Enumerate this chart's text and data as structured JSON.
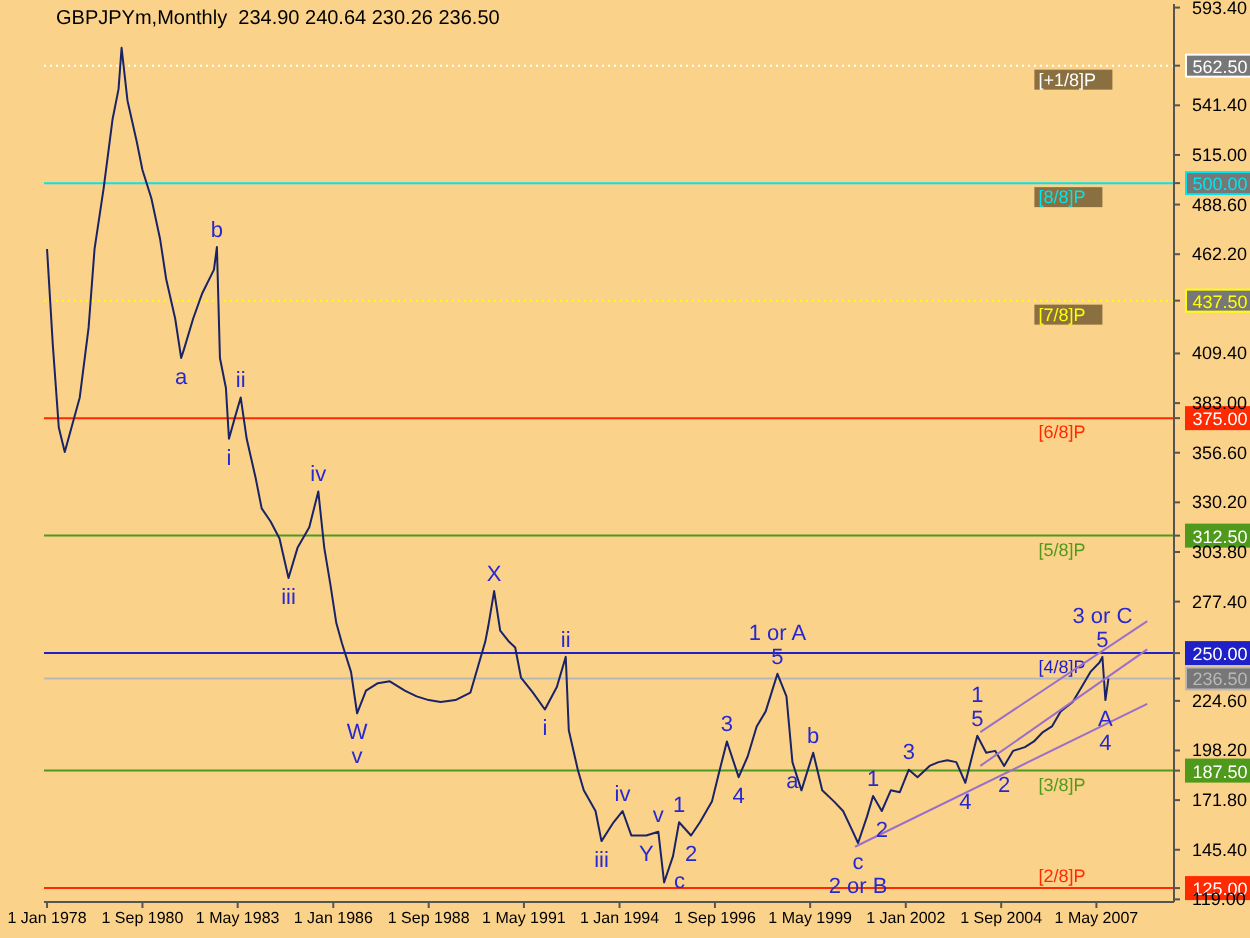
{
  "chart_data": {
    "type": "line",
    "title": "GBPJPYm,Monthly  234.90 240.64 230.26 236.50",
    "xlim": [
      "1977-12",
      "2009-07"
    ],
    "xticks": [
      {
        "value": "1978-01",
        "label": "1 Jan 1978"
      },
      {
        "value": "1980-09",
        "label": "1 Sep 1980"
      },
      {
        "value": "1983-05",
        "label": "1 May 1983"
      },
      {
        "value": "1986-01",
        "label": "1 Jan 1986"
      },
      {
        "value": "1988-09",
        "label": "1 Sep 1988"
      },
      {
        "value": "1991-05",
        "label": "1 May 1991"
      },
      {
        "value": "1994-01",
        "label": "1 Jan 1994"
      },
      {
        "value": "1996-09",
        "label": "1 Sep 1996"
      },
      {
        "value": "1999-05",
        "label": "1 May 1999"
      },
      {
        "value": "2002-01",
        "label": "1 Jan 2002"
      },
      {
        "value": "2004-09",
        "label": "1 Sep 2004"
      },
      {
        "value": "2007-05",
        "label": "1 May 2007"
      }
    ],
    "ylim": [
      117.6,
      595.3
    ],
    "yticks": [
      {
        "value": 125,
        "label": "125.00"
      },
      {
        "value": 187.5,
        "label": "187.50"
      },
      {
        "value": 236.5,
        "label": "236.50"
      },
      {
        "value": 250,
        "label": "250.00"
      },
      {
        "value": 312.5,
        "label": "312.50"
      },
      {
        "value": 375,
        "label": "375.00"
      },
      {
        "value": 437.5,
        "label": "437.50"
      },
      {
        "value": 500,
        "label": "500.00"
      },
      {
        "value": 562.5,
        "label": "562.50"
      },
      {
        "value": 119,
        "label": "119.00"
      },
      {
        "value": 145.4,
        "label": "145.40"
      },
      {
        "value": 171.8,
        "label": "171.80"
      },
      {
        "value": 198.2,
        "label": "198.20"
      },
      {
        "value": 224.6,
        "label": "224.60"
      },
      {
        "value": 277.4,
        "label": "277.40"
      },
      {
        "value": 303.8,
        "label": "303.80"
      },
      {
        "value": 330.2,
        "label": "330.20"
      },
      {
        "value": 356.6,
        "label": "356.60"
      },
      {
        "value": 383,
        "label": "383.00"
      },
      {
        "value": 409.4,
        "label": "409.40"
      },
      {
        "value": 462.2,
        "label": "462.20"
      },
      {
        "value": 488.6,
        "label": "488.60"
      },
      {
        "value": 515,
        "label": "515.00"
      },
      {
        "value": 541.4,
        "label": "541.40"
      },
      {
        "value": 593.4,
        "label": "593.40"
      }
    ],
    "series": [
      {
        "color": "#1a2366",
        "x": [
          "1978-01",
          "1978-03",
          "1978-05",
          "1978-07",
          "1978-12",
          "1979-03",
          "1979-05",
          "1979-08",
          "1979-11",
          "1980-01",
          "1980-02",
          "1980-04",
          "1980-07",
          "1980-09",
          "1980-12",
          "1981-03",
          "1981-05",
          "1981-08",
          "1981-10",
          "1981-11",
          "1982-02",
          "1982-05",
          "1982-09",
          "1982-10",
          "1982-11",
          "1983-01",
          "1983-02",
          "1983-04",
          "1983-06",
          "1983-08",
          "1983-11",
          "1984-01",
          "1984-04",
          "1984-07",
          "1984-10",
          "1985-01",
          "1985-05",
          "1985-08",
          "1985-10",
          "1985-12",
          "1986-02",
          "1986-04",
          "1986-07",
          "1986-09",
          "1986-12",
          "1987-04",
          "1987-08",
          "1988-01",
          "1988-05",
          "1988-09",
          "1989-01",
          "1989-06",
          "1989-11",
          "1990-01",
          "1990-04",
          "1990-05",
          "1990-07",
          "1990-09",
          "1990-12",
          "1991-02",
          "1991-04",
          "1991-08",
          "1991-12",
          "1992-04",
          "1992-07",
          "1992-08",
          "1992-11",
          "1993-01",
          "1993-05",
          "1993-07",
          "1993-11",
          "1994-02",
          "1994-05",
          "1994-10",
          "1995-02",
          "1995-04",
          "1995-07",
          "1995-09",
          "1996-01",
          "1996-04",
          "1996-08",
          "1996-10",
          "1997-01",
          "1997-05",
          "1997-08",
          "1997-11",
          "1998-02",
          "1998-06",
          "1998-09",
          "1998-11",
          "1999-02",
          "1999-06",
          "1999-09",
          "2000-01",
          "2000-04",
          "2000-07",
          "2000-09",
          "2000-12",
          "2001-02",
          "2001-05",
          "2001-08",
          "2001-11",
          "2002-02",
          "2002-05",
          "2002-09",
          "2002-12",
          "2003-03",
          "2003-06",
          "2003-09",
          "2004-01",
          "2004-04",
          "2004-07",
          "2004-10",
          "2005-01",
          "2005-05",
          "2005-08",
          "2005-11",
          "2006-02",
          "2006-05",
          "2006-09",
          "2006-12",
          "2007-03",
          "2007-06",
          "2007-07",
          "2007-08",
          "2007-09"
        ],
        "values": [
          465,
          414,
          370,
          357,
          386,
          423,
          465,
          497,
          534,
          550,
          572,
          544,
          523,
          507,
          492,
          470,
          449,
          428,
          407,
          412,
          428,
          441,
          454,
          466,
          407,
          391,
          364,
          375,
          386,
          364,
          343,
          327,
          320,
          311,
          290,
          306,
          317,
          336,
          306,
          287,
          266,
          255,
          240,
          218,
          230,
          234,
          235,
          230,
          227,
          225,
          224,
          225,
          229,
          240,
          256,
          264,
          283,
          262,
          256,
          253,
          237,
          229,
          220,
          232,
          248,
          209,
          188,
          177,
          166,
          150,
          160,
          166,
          153,
          153,
          155,
          128,
          142,
          160,
          153,
          160,
          171,
          184,
          203,
          184,
          195,
          211,
          219,
          239,
          227,
          192,
          177,
          197,
          177,
          171,
          166,
          156,
          149,
          163,
          174,
          166,
          177,
          176,
          188,
          184,
          190,
          192,
          193,
          192,
          181,
          206,
          197,
          198,
          190,
          198,
          200,
          203,
          208,
          211,
          219,
          224,
          232,
          240,
          245,
          248,
          225,
          236.5
        ]
      },
      {
        "type": "line",
        "color": "#9b6fc8",
        "x": [
          "2000-08",
          "2008-10"
        ],
        "values": [
          147,
          223
        ]
      },
      {
        "type": "line",
        "color": "#9b6fc8",
        "x": [
          "2004-02",
          "2008-10"
        ],
        "values": [
          190,
          252
        ]
      },
      {
        "type": "line",
        "color": "#9b6fc8",
        "x": [
          "2004-02",
          "2008-10"
        ],
        "values": [
          208,
          267
        ]
      }
    ],
    "ref_lines": [
      {
        "axis": "y",
        "value": 562.5,
        "label": "[+1/8]P",
        "color": "#ffffff",
        "line_style": "dotted"
      },
      {
        "axis": "y",
        "value": 500,
        "label": "[8/8]P",
        "color": "#00e5ee"
      },
      {
        "axis": "y",
        "value": 437.5,
        "label": "[7/8]P",
        "color": "#ffff00",
        "line_style": "dotted"
      },
      {
        "axis": "y",
        "value": 375,
        "label": "[6/8]P",
        "color": "#ff2a00"
      },
      {
        "axis": "y",
        "value": 312.5,
        "label": "[5/8]P",
        "color": "#4f9a1c"
      },
      {
        "axis": "y",
        "value": 250,
        "label": "[4/8]P",
        "color": "#2020c8"
      },
      {
        "axis": "y",
        "value": 236.5,
        "color": "#b8b8b8"
      },
      {
        "axis": "y",
        "value": 187.5,
        "label": "[3/8]P",
        "color": "#4f9a1c"
      },
      {
        "axis": "y",
        "value": 125,
        "label": "[2/8]P",
        "color": "#ff2a00"
      }
    ],
    "annotations": [
      {
        "text": "a",
        "x": "1981-10",
        "y": 407
      },
      {
        "text": "b",
        "x": "1982-10",
        "y": 466
      },
      {
        "text": "i",
        "x": "1983-02",
        "y": 364
      },
      {
        "text": "ii",
        "x": "1983-06",
        "y": 386
      },
      {
        "text": "iii",
        "x": "1984-10",
        "y": 290
      },
      {
        "text": "iv",
        "x": "1985-08",
        "y": 336
      },
      {
        "text": "W",
        "x": "1986-09",
        "y": 218
      },
      {
        "text": "v",
        "x": "1986-09",
        "y": 218
      },
      {
        "text": "X",
        "x": "1990-07",
        "y": 283
      },
      {
        "text": "i",
        "x": "1991-12",
        "y": 220
      },
      {
        "text": "ii",
        "x": "1992-07",
        "y": 248
      },
      {
        "text": "iii",
        "x": "1993-07",
        "y": 150
      },
      {
        "text": "iv",
        "x": "1994-02",
        "y": 166
      },
      {
        "text": "Y",
        "x": "1994-10",
        "y": 153
      },
      {
        "text": "v",
        "x": "1995-02",
        "y": 155
      },
      {
        "text": "c",
        "x": "1995-04",
        "y": 128
      },
      {
        "text": "1",
        "x": "1995-09",
        "y": 160
      },
      {
        "text": "2",
        "x": "1996-01",
        "y": 153
      },
      {
        "text": "3",
        "x": "1997-01",
        "y": 203
      },
      {
        "text": "4",
        "x": "1997-05",
        "y": 184
      },
      {
        "text": "5",
        "x": "1998-06",
        "y": 239
      },
      {
        "text": "1 or A",
        "x": "1998-06",
        "y": 239
      },
      {
        "text": "a",
        "x": "1998-11",
        "y": 192
      },
      {
        "text": "b",
        "x": "1999-06",
        "y": 197
      },
      {
        "text": "c",
        "x": "2000-09",
        "y": 149
      },
      {
        "text": "2 or B",
        "x": "2000-09",
        "y": 149
      },
      {
        "text": "1",
        "x": "2001-02",
        "y": 174
      },
      {
        "text": "2",
        "x": "2001-05",
        "y": 166
      },
      {
        "text": "3",
        "x": "2002-02",
        "y": 188
      },
      {
        "text": "4",
        "x": "2003-09",
        "y": 181
      },
      {
        "text": "5",
        "x": "2004-01",
        "y": 206
      },
      {
        "text": "1",
        "x": "2004-01",
        "y": 206
      },
      {
        "text": "2",
        "x": "2004-10",
        "y": 190
      },
      {
        "text": "5",
        "x": "2007-07",
        "y": 248
      },
      {
        "text": "3 or C",
        "x": "2007-07",
        "y": 248
      },
      {
        "text": "A",
        "x": "2007-08",
        "y": 225
      },
      {
        "text": "4",
        "x": "2007-08",
        "y": 225
      }
    ]
  }
}
